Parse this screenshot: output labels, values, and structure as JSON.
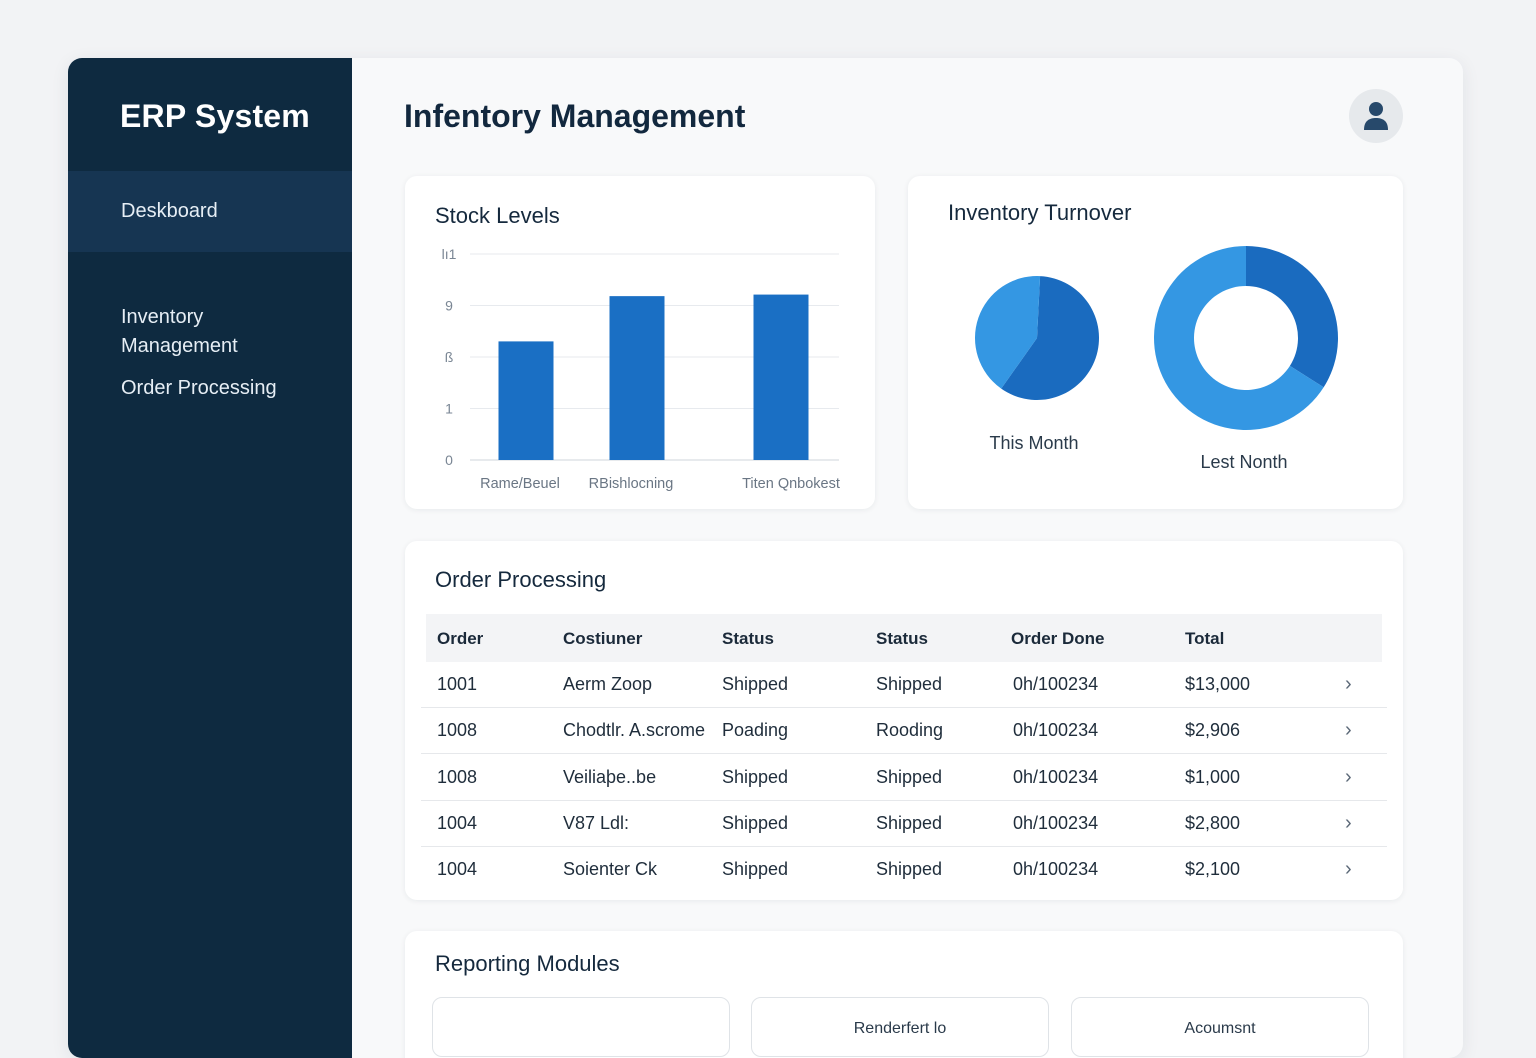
{
  "sidebar": {
    "brand": "ERP System",
    "items": [
      {
        "label": "Deskboard",
        "active": true
      },
      {
        "label": "Inventory\nManagement",
        "active": false
      },
      {
        "label": "Order Processing",
        "active": false
      }
    ]
  },
  "header": {
    "title": "Infentory Management",
    "avatar_icon": "user-icon"
  },
  "stock_levels": {
    "title": "Stock Levels"
  },
  "chart_data": [
    {
      "type": "bar",
      "title": "Stock Levels",
      "categories": [
        "Rame/Beuel",
        "RBishlocning",
        "Titen Qnbokest"
      ],
      "values": [
        7.6,
        10.5,
        10.6
      ],
      "yticks": [
        "0",
        "1",
        "ß",
        "9",
        "lı1"
      ],
      "ylim": [
        0,
        13.2
      ],
      "grid": true,
      "color": "#1a6fc4"
    },
    {
      "type": "pie",
      "title": "Inventory Turnover",
      "pies": [
        {
          "label": "This Month",
          "donut": false,
          "slices": [
            {
              "value": 59,
              "color": "#1a6bbf"
            },
            {
              "value": 41,
              "color": "#3497e3"
            }
          ]
        },
        {
          "label": "Lest Nonth",
          "donut": true,
          "slices": [
            {
              "value": 34,
              "color": "#1a6bbf"
            },
            {
              "value": 66,
              "color": "#3497e3"
            }
          ]
        }
      ]
    }
  ],
  "turnover": {
    "title": "Inventory Turnover",
    "this_month": "This Month",
    "last_month": "Lest Nonth"
  },
  "orders": {
    "title": "Order Processing",
    "columns": [
      "Order",
      "Costiuner",
      "Status",
      "Status",
      "Order Done",
      "Total"
    ],
    "rows": [
      [
        "1001",
        "Aerm Zoop",
        "Shipped",
        "Shipped",
        "0h/100234",
        "$13,000"
      ],
      [
        "1008",
        "Chodtlr. A.scrome",
        "Poading",
        "Rooding",
        "0h/100234",
        "$2,906"
      ],
      [
        "1008",
        "Veiliaþe..be",
        "Shipped",
        "Shipped",
        "0h/100234",
        "$1,000"
      ],
      [
        "1004",
        "V87 Ldl:",
        "Shipped",
        "Shipped",
        "0h/100234",
        "$2,800"
      ],
      [
        "1004",
        "Soienter Ck",
        "Shipped",
        "Shipped",
        "0h/100234",
        "$2,100"
      ]
    ]
  },
  "reporting": {
    "title": "Reporting Modules",
    "modules": [
      {
        "label": ""
      },
      {
        "label": "Renderfert lo"
      },
      {
        "label": "Acoumsnt"
      }
    ]
  },
  "colors": {
    "sidebar_bg": "#0e2a40",
    "sidebar_active": "#163552",
    "accent_dark": "#1a6bbf",
    "accent_light": "#3497e3"
  }
}
